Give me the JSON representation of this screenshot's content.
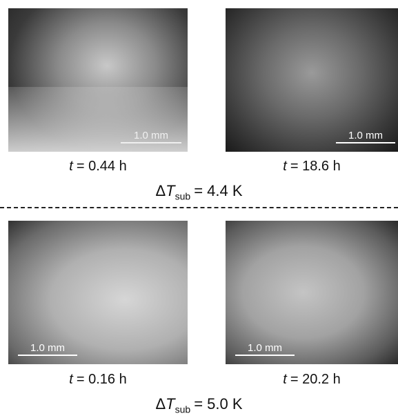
{
  "groups": [
    {
      "panels": [
        {
          "scale_bar": "1.0 mm",
          "time": {
            "var": "t",
            "text": "= 0.44 h"
          }
        },
        {
          "scale_bar": "1.0 mm",
          "time": {
            "var": "t",
            "text": "= 18.6 h"
          }
        }
      ],
      "condition": {
        "symbol": "Δ",
        "var": "T",
        "sub": "sub",
        "text": "= 4.4 K"
      }
    },
    {
      "panels": [
        {
          "scale_bar": "1.0 mm",
          "time": {
            "var": "t",
            "text": "= 0.16 h"
          }
        },
        {
          "scale_bar": "1.0 mm",
          "time": {
            "var": "t",
            "text": "= 20.2 h"
          }
        }
      ],
      "condition": {
        "symbol": "Δ",
        "var": "T",
        "sub": "sub",
        "text": "= 5.0 K"
      }
    }
  ]
}
